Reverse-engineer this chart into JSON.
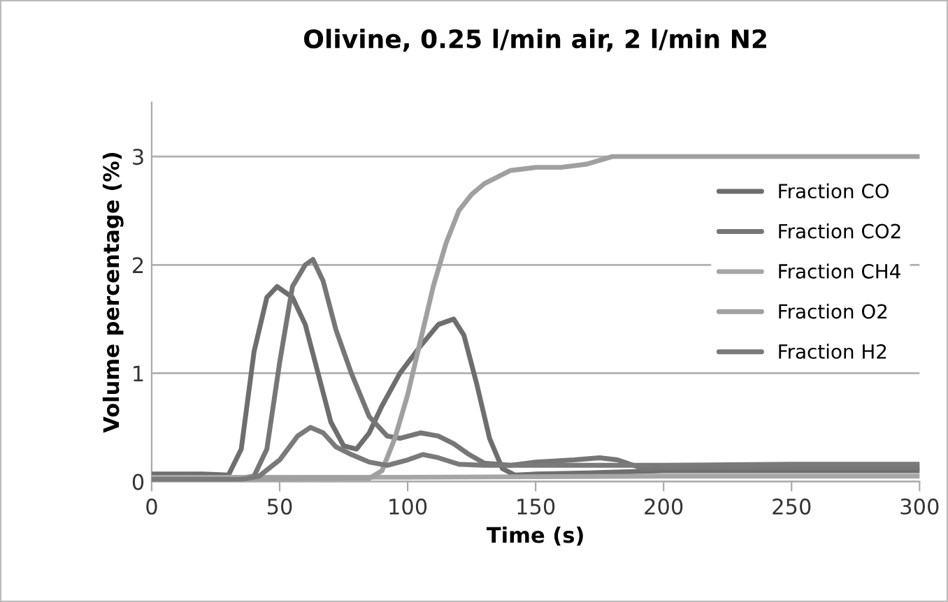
{
  "chart_data": {
    "type": "line",
    "title": "Olivine, 0.25 l/min air, 2 l/min N2",
    "xlabel": "Time (s)",
    "ylabel": "Volume percentage (%)",
    "xlim": [
      0,
      300
    ],
    "xticks": [
      0,
      50,
      100,
      150,
      200,
      250,
      300
    ],
    "ylim": [
      0,
      3.5
    ],
    "yticks": [
      0,
      1,
      2,
      3
    ],
    "grid": "y",
    "legend": "right",
    "marker": "none",
    "line_style": "solid",
    "series": [
      {
        "name": "Fraction CO",
        "color": "#6e6e6e",
        "x": [
          0,
          20,
          30,
          35,
          40,
          45,
          49,
          55,
          60,
          65,
          70,
          75,
          80,
          85,
          90,
          97,
          105,
          112,
          118,
          122,
          127,
          132,
          137,
          142,
          150,
          170,
          200,
          250,
          300
        ],
        "values": [
          0.07,
          0.07,
          0.06,
          0.3,
          1.2,
          1.7,
          1.8,
          1.7,
          1.45,
          1.0,
          0.55,
          0.33,
          0.3,
          0.45,
          0.7,
          1.0,
          1.25,
          1.45,
          1.5,
          1.35,
          0.9,
          0.4,
          0.12,
          0.06,
          0.07,
          0.08,
          0.1,
          0.1,
          0.1
        ]
      },
      {
        "name": "Fraction CO2",
        "color": "#767676",
        "x": [
          0,
          30,
          40,
          45,
          50,
          55,
          60,
          63,
          67,
          72,
          78,
          85,
          92,
          97,
          105,
          112,
          118,
          124,
          130,
          140,
          150,
          165,
          175,
          182,
          192,
          200,
          250,
          300
        ],
        "values": [
          0.02,
          0.02,
          0.05,
          0.3,
          1.1,
          1.8,
          2.0,
          2.05,
          1.85,
          1.4,
          1.0,
          0.6,
          0.42,
          0.4,
          0.45,
          0.42,
          0.35,
          0.25,
          0.17,
          0.15,
          0.18,
          0.2,
          0.22,
          0.2,
          0.12,
          0.13,
          0.13,
          0.13
        ]
      },
      {
        "name": "Fraction CH4",
        "color": "#a6a6a6",
        "x": [
          0,
          100,
          200,
          300
        ],
        "values": [
          0.04,
          0.04,
          0.05,
          0.05
        ]
      },
      {
        "name": "Fraction O2",
        "color": "#a0a0a0",
        "x": [
          0,
          85,
          90,
          95,
          100,
          105,
          110,
          115,
          120,
          125,
          130,
          140,
          150,
          160,
          170,
          180,
          185,
          200,
          250,
          300
        ],
        "values": [
          0.02,
          0.03,
          0.1,
          0.4,
          0.8,
          1.3,
          1.8,
          2.2,
          2.5,
          2.65,
          2.75,
          2.87,
          2.9,
          2.9,
          2.93,
          3.0,
          3.0,
          3.0,
          3.0,
          3.0
        ]
      },
      {
        "name": "Fraction H2",
        "color": "#7a7a7a",
        "x": [
          0,
          35,
          42,
          50,
          57,
          62,
          67,
          72,
          78,
          85,
          92,
          100,
          106,
          112,
          120,
          130,
          150,
          200,
          250,
          300
        ],
        "values": [
          0.02,
          0.02,
          0.05,
          0.2,
          0.42,
          0.5,
          0.45,
          0.32,
          0.25,
          0.18,
          0.15,
          0.2,
          0.25,
          0.22,
          0.16,
          0.15,
          0.15,
          0.15,
          0.16,
          0.16
        ]
      }
    ]
  }
}
